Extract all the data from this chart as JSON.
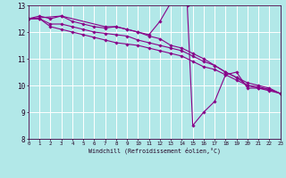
{
  "xlabel": "Windchill (Refroidissement éolien,°C)",
  "bg_color": "#b2e8e8",
  "grid_color": "#ffffff",
  "line_color": "#880088",
  "marker_color": "#880088",
  "xmin": 0,
  "xmax": 23,
  "ymin": 8,
  "ymax": 13,
  "series": [
    {
      "x": [
        0,
        1,
        2,
        3,
        4,
        5,
        6,
        7,
        8,
        9,
        10,
        11,
        12,
        13,
        14,
        14.5,
        15,
        16,
        17,
        18,
        19,
        20,
        21,
        22,
        23
      ],
      "y": [
        12.5,
        12.6,
        12.5,
        12.6,
        12.4,
        12.3,
        12.2,
        12.15,
        12.2,
        12.1,
        12.0,
        11.9,
        12.4,
        13.1,
        13.2,
        13.0,
        8.5,
        9.0,
        9.4,
        10.4,
        10.5,
        9.9,
        9.9,
        9.8,
        9.7
      ]
    },
    {
      "x": [
        0,
        1,
        2,
        3,
        4,
        5,
        6,
        7,
        8,
        9,
        10,
        11,
        12,
        13,
        14,
        15,
        16,
        17,
        18,
        19,
        20,
        21,
        22,
        23
      ],
      "y": [
        12.5,
        12.5,
        12.3,
        12.3,
        12.2,
        12.1,
        12.0,
        11.95,
        11.9,
        11.85,
        11.7,
        11.6,
        11.5,
        11.4,
        11.3,
        11.1,
        10.9,
        10.75,
        10.5,
        10.3,
        10.1,
        10.0,
        9.9,
        9.7
      ]
    },
    {
      "x": [
        0,
        1,
        2,
        3,
        4,
        5,
        6,
        7,
        8,
        9,
        10,
        11,
        12,
        13,
        14,
        15,
        16,
        17,
        18,
        19,
        20,
        21,
        22,
        23
      ],
      "y": [
        12.5,
        12.5,
        12.2,
        12.1,
        12.0,
        11.9,
        11.8,
        11.7,
        11.6,
        11.55,
        11.5,
        11.4,
        11.3,
        11.2,
        11.1,
        10.9,
        10.7,
        10.6,
        10.4,
        10.2,
        10.0,
        9.9,
        9.85,
        9.7
      ]
    },
    {
      "x": [
        0,
        3,
        7,
        8,
        9,
        10,
        11,
        12,
        13,
        14,
        15,
        16,
        17,
        18,
        19,
        20,
        21,
        22,
        23
      ],
      "y": [
        12.5,
        12.6,
        12.2,
        12.2,
        12.1,
        12.0,
        11.85,
        11.75,
        11.5,
        11.4,
        11.2,
        11.0,
        10.75,
        10.5,
        10.3,
        10.0,
        9.95,
        9.85,
        9.7
      ]
    }
  ]
}
